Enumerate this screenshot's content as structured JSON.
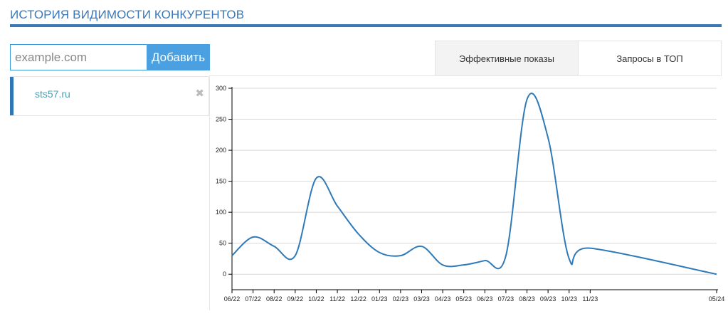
{
  "header": {
    "title": "ИСТОРИЯ ВИДИМОСТИ КОНКУРЕНТОВ"
  },
  "add_form": {
    "placeholder": "example.com",
    "button_label": "Добавить"
  },
  "competitors": [
    {
      "domain": "sts57.ru",
      "remove_icon": "close-icon"
    }
  ],
  "tabs": [
    {
      "label": "Эффективные показы",
      "active": true
    },
    {
      "label": "Запросы в ТОП",
      "active": false
    }
  ],
  "colors": {
    "accent": "#3a78b8",
    "button": "#4aa0e0",
    "line": "#2f7ab8"
  },
  "chart_data": {
    "type": "line",
    "title": "",
    "xlabel": "",
    "ylabel": "",
    "ylim": [
      -25,
      300
    ],
    "yticks": [
      0,
      50,
      100,
      150,
      200,
      250,
      300
    ],
    "xlim": [
      "2022-06",
      "2024-05"
    ],
    "x_tick_labels": [
      "06/22",
      "07/22",
      "08/22",
      "09/22",
      "10/22",
      "11/22",
      "12/22",
      "01/23",
      "02/23",
      "03/23",
      "04/23",
      "05/23",
      "06/23",
      "07/23",
      "08/23",
      "09/23",
      "10/23",
      "11/23",
      "05/24"
    ],
    "grid": true,
    "series": [
      {
        "x": [
          "2022-06",
          "2022-07",
          "2022-08",
          "2022-09",
          "2022-10",
          "2022-11",
          "2022-12",
          "2023-01",
          "2023-02",
          "2023-03",
          "2023-04",
          "2023-05",
          "2023-06",
          "2023-07",
          "2023-08",
          "2023-09",
          "2023-10",
          "2023-11",
          "2024-05"
        ],
        "values": [
          30,
          60,
          45,
          30,
          155,
          110,
          65,
          35,
          30,
          45,
          15,
          15,
          22,
          30,
          282,
          220,
          25,
          42,
          0
        ]
      }
    ]
  }
}
